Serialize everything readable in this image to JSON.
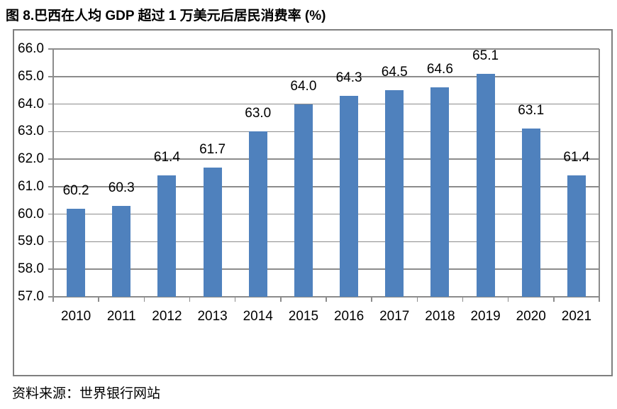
{
  "page": {
    "title": "图 8.巴西在人均 GDP 超过 1 万美元后居民消费率 (%)",
    "source": "资料来源：世界银行网站"
  },
  "chart_data": {
    "type": "bar",
    "title": "图 8.巴西在人均 GDP 超过 1 万美元后居民消费率 (%)",
    "categories": [
      "2010",
      "2011",
      "2012",
      "2013",
      "2014",
      "2015",
      "2016",
      "2017",
      "2018",
      "2019",
      "2020",
      "2021"
    ],
    "values": [
      60.2,
      60.3,
      61.4,
      61.7,
      63.0,
      64.0,
      64.3,
      64.5,
      64.6,
      65.1,
      63.1,
      61.4
    ],
    "data_labels": [
      "60.2",
      "60.3",
      "61.4",
      "61.7",
      "63.0",
      "64.0",
      "64.3",
      "64.5",
      "64.6",
      "65.1",
      "63.1",
      "61.4"
    ],
    "xlabel": "",
    "ylabel": "",
    "ylim": [
      57.0,
      66.0
    ],
    "ytick_step": 1.0,
    "ytick_labels": [
      "57.0",
      "58.0",
      "59.0",
      "60.0",
      "61.0",
      "62.0",
      "63.0",
      "64.0",
      "65.0",
      "66.0"
    ],
    "grid": true,
    "legend": "none",
    "colors": {
      "bar": "#4F81BD",
      "grid": "#8C8C8C",
      "chart_border": "#7F7F7F",
      "text": "#000000"
    }
  }
}
